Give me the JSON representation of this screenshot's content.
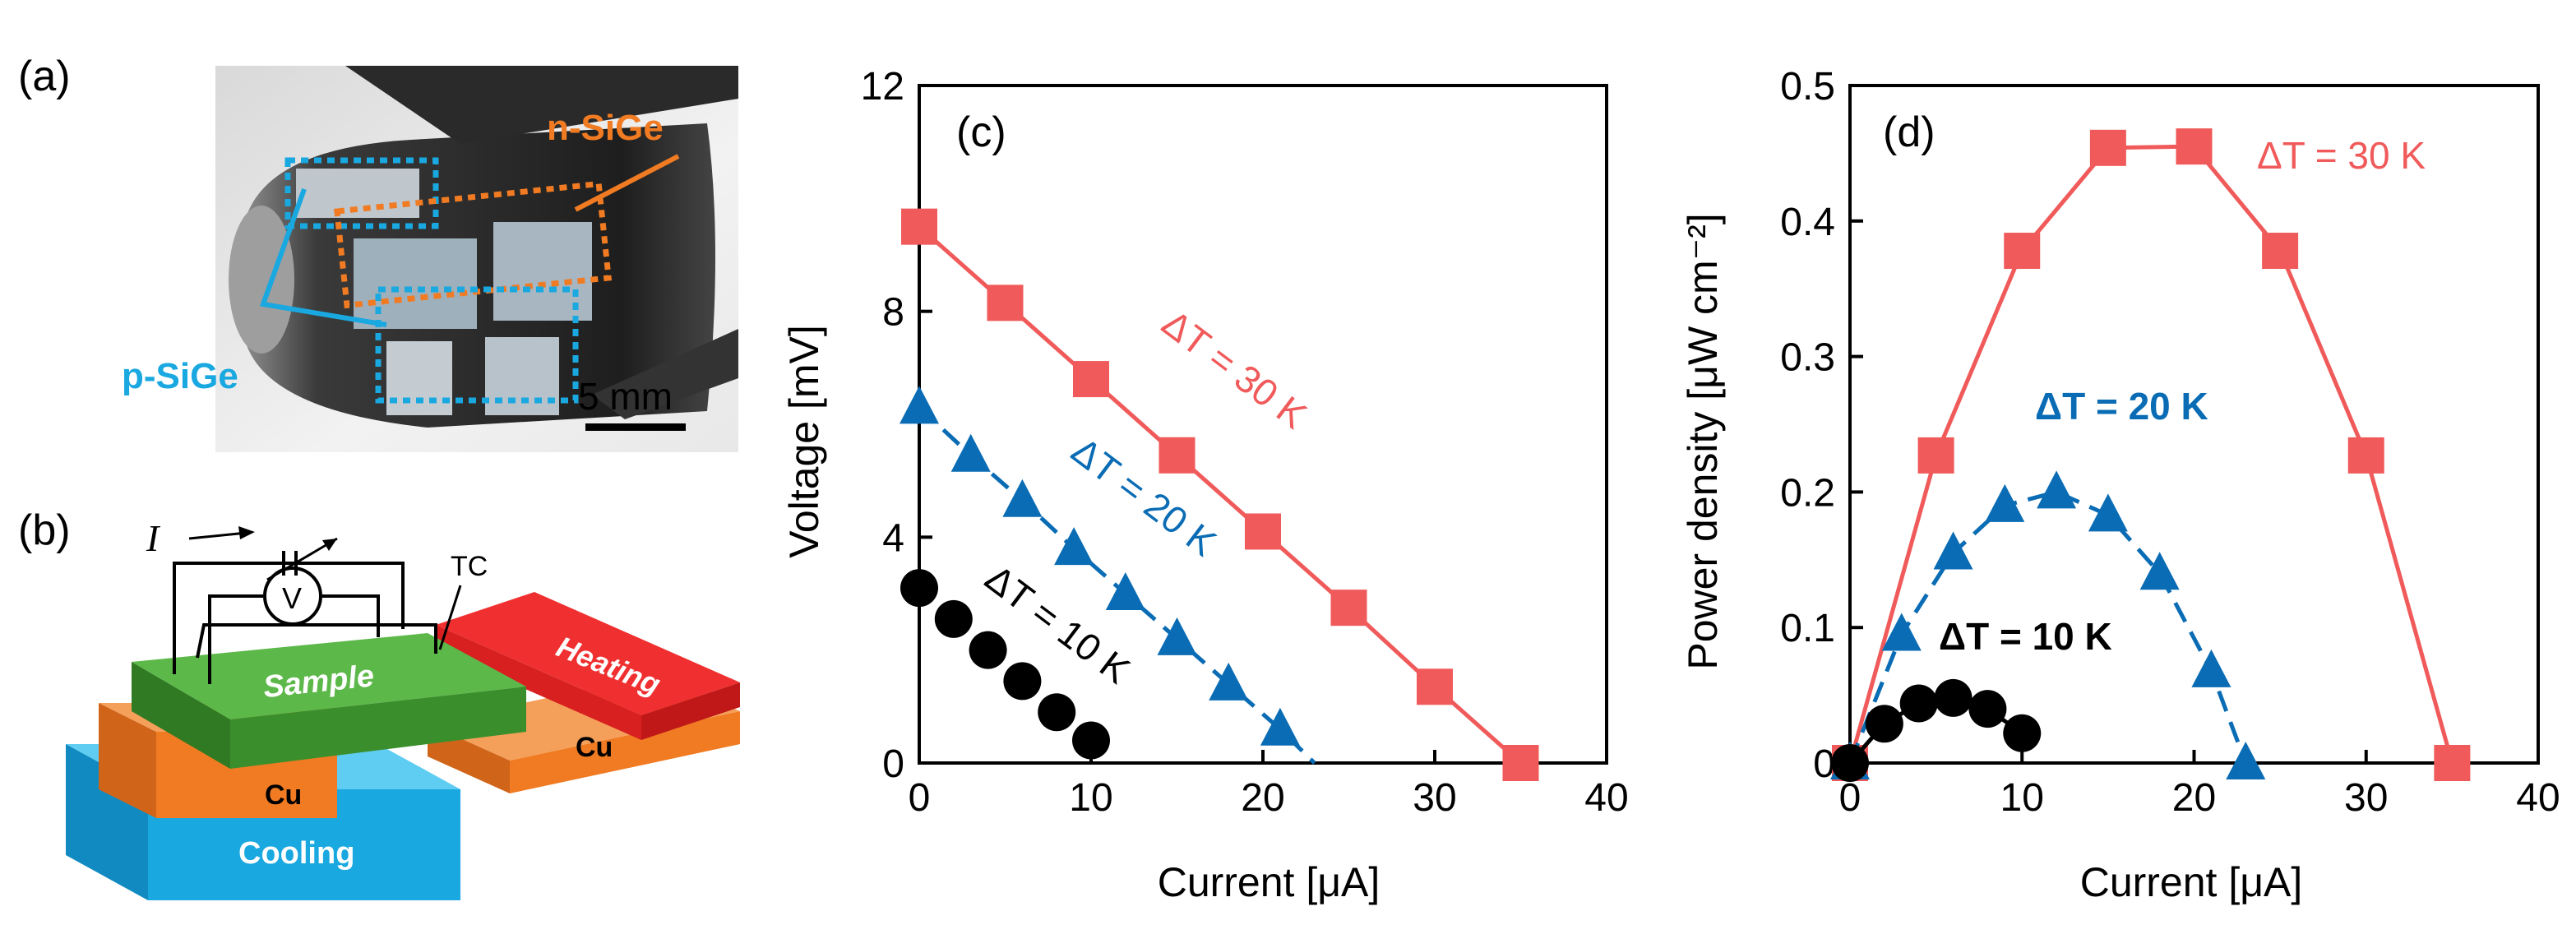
{
  "panel_labels": {
    "a": "(a)",
    "b": "(b)",
    "c": "(c)",
    "d": "(d)"
  },
  "photo": {
    "n_label": "n-SiGe",
    "p_label": "p-SiGe",
    "scale_bar": "5 mm"
  },
  "schematic": {
    "current_symbol": "I",
    "voltmeter": "V",
    "thermocouple": "TC",
    "sample": "Sample",
    "heating": "Heating",
    "cu_left": "Cu",
    "cu_right": "Cu",
    "cooling": "Cooling"
  },
  "colors": {
    "red": "#f05a5a",
    "blue": "#0a6cb4",
    "black": "#000000",
    "orange": "#f07b22",
    "cyan": "#19a8e0",
    "green": "#4caf3f"
  },
  "chart_data": [
    {
      "type": "line",
      "panel": "(c)",
      "xlabel": "Current [μA]",
      "ylabel": "Voltage [mV]",
      "xlim": [
        0,
        40
      ],
      "ylim": [
        0,
        12
      ],
      "xticks": [
        0,
        10,
        20,
        30,
        40
      ],
      "yticks": [
        0,
        4,
        8,
        12
      ],
      "series": [
        {
          "name": "ΔT = 30 K",
          "marker": "square",
          "color": "#f05a5a",
          "line": "solid",
          "x": [
            0,
            5,
            10,
            15,
            20,
            25,
            30,
            35
          ],
          "y": [
            9.5,
            8.15,
            6.8,
            5.45,
            4.1,
            2.75,
            1.35,
            0
          ]
        },
        {
          "name": "ΔT = 20 K",
          "marker": "triangle",
          "color": "#0a6cb4",
          "line": "dashed",
          "x": [
            0,
            3,
            6,
            9,
            12,
            15,
            18,
            21
          ],
          "y": [
            6.3,
            5.45,
            4.65,
            3.8,
            3.0,
            2.2,
            1.4,
            0.6
          ],
          "extend_to": [
            23,
            0
          ]
        },
        {
          "name": "ΔT = 10 K",
          "marker": "circle",
          "color": "#000000",
          "line": "none",
          "x": [
            0,
            2,
            4,
            6,
            8,
            10
          ],
          "y": [
            3.1,
            2.55,
            2.0,
            1.45,
            0.9,
            0.4
          ]
        }
      ]
    },
    {
      "type": "line",
      "panel": "(d)",
      "xlabel": "Current [μA]",
      "ylabel": "Power density [μW cm⁻²]",
      "xlim": [
        0,
        40
      ],
      "ylim": [
        0,
        0.5
      ],
      "xticks": [
        0,
        10,
        20,
        30,
        40
      ],
      "yticks": [
        0,
        0.1,
        0.2,
        0.3,
        0.4,
        0.5
      ],
      "series": [
        {
          "name": "ΔT = 30 K",
          "marker": "square",
          "color": "#f05a5a",
          "line": "solid",
          "x": [
            0,
            5,
            10,
            15,
            20,
            25,
            30,
            35
          ],
          "y": [
            0,
            0.227,
            0.378,
            0.454,
            0.455,
            0.378,
            0.227,
            0
          ]
        },
        {
          "name": "ΔT = 20 K",
          "marker": "triangle",
          "color": "#0a6cb4",
          "line": "dashed",
          "x": [
            0,
            3,
            6,
            9,
            12,
            15,
            18,
            21,
            23
          ],
          "y": [
            0,
            0.095,
            0.155,
            0.19,
            0.2,
            0.183,
            0.14,
            0.068,
            0
          ]
        },
        {
          "name": "ΔT = 10 K",
          "marker": "circle",
          "color": "#000000",
          "line": "solid",
          "x": [
            0,
            2,
            4,
            6,
            8,
            10
          ],
          "y": [
            0,
            0.029,
            0.044,
            0.048,
            0.04,
            0.022
          ]
        }
      ]
    }
  ]
}
